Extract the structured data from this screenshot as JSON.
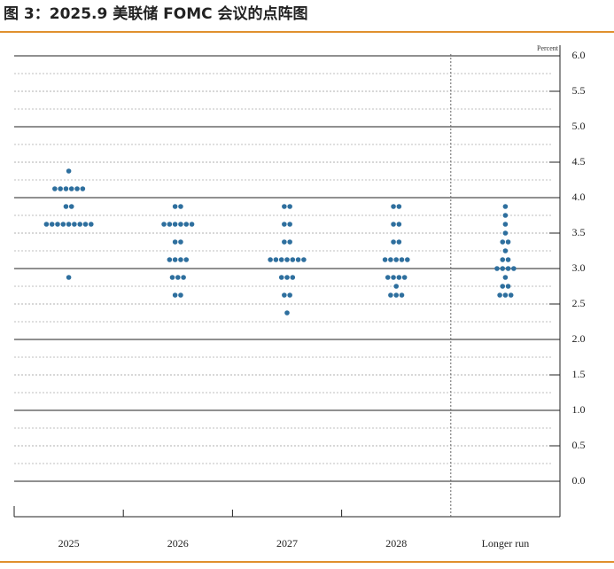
{
  "chart_data": {
    "type": "dot_plot",
    "title": "图 3：2025.9 美联储 FOMC 会议的点阵图",
    "y_unit": "Percent",
    "categories": [
      "2025",
      "2026",
      "2027",
      "2028",
      "Longer run"
    ],
    "dots": [
      [
        4.375,
        4.125,
        4.125,
        4.125,
        4.125,
        4.125,
        4.125,
        3.875,
        3.875,
        3.625,
        3.625,
        3.625,
        3.625,
        3.625,
        3.625,
        3.625,
        3.625,
        3.625,
        2.875
      ],
      [
        3.875,
        3.875,
        3.625,
        3.625,
        3.625,
        3.625,
        3.625,
        3.625,
        3.375,
        3.375,
        3.125,
        3.125,
        3.125,
        3.125,
        2.875,
        2.875,
        2.875,
        2.625,
        2.625
      ],
      [
        3.875,
        3.875,
        3.625,
        3.625,
        3.375,
        3.375,
        3.125,
        3.125,
        3.125,
        3.125,
        3.125,
        3.125,
        3.125,
        2.875,
        2.875,
        2.875,
        2.625,
        2.625,
        2.375
      ],
      [
        3.875,
        3.875,
        3.625,
        3.625,
        3.375,
        3.375,
        3.125,
        3.125,
        3.125,
        3.125,
        3.125,
        2.875,
        2.875,
        2.875,
        2.875,
        2.75,
        2.625,
        2.625,
        2.625
      ],
      [
        3.875,
        3.75,
        3.625,
        3.5,
        3.375,
        3.375,
        3.25,
        3.125,
        3.125,
        3.0,
        3.0,
        3.0,
        3.0,
        2.875,
        2.75,
        2.75,
        2.625,
        2.625,
        2.625
      ]
    ],
    "color": "#2e6f9e",
    "ylim": [
      -0.5,
      6.15
    ],
    "yticks": [
      {
        "value": 0,
        "label": "0.0"
      },
      0.5,
      {
        "value": 1,
        "label": "1.0"
      },
      1.5,
      {
        "value": 2,
        "label": "2.0"
      },
      2.5,
      {
        "value": 3,
        "label": "3.0"
      },
      3.5,
      {
        "value": 4,
        "label": "4.0"
      },
      4.5,
      {
        "value": 5,
        "label": "5.0"
      },
      5.5,
      {
        "value": 6,
        "label": "6.0"
      }
    ],
    "grid": true
  }
}
